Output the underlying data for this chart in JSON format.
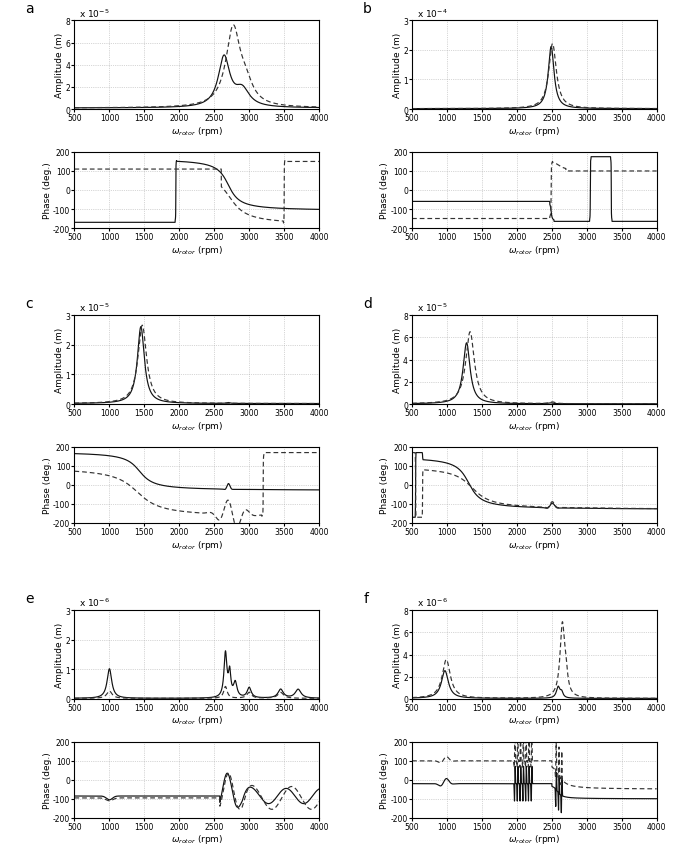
{
  "panels": [
    {
      "label": "a",
      "ylim_amp": [
        0,
        8e-05
      ],
      "exp": -5,
      "yticks_amp": [
        0,
        2e-05,
        4e-05,
        6e-05,
        8e-05
      ]
    },
    {
      "label": "b",
      "ylim_amp": [
        0,
        0.0003
      ],
      "exp": -4,
      "yticks_amp": [
        0,
        0.0001,
        0.0002,
        0.0003
      ]
    },
    {
      "label": "c",
      "ylim_amp": [
        0,
        3e-05
      ],
      "exp": -5,
      "yticks_amp": [
        0,
        1e-05,
        2e-05,
        3e-05
      ]
    },
    {
      "label": "d",
      "ylim_amp": [
        0,
        8e-05
      ],
      "exp": -5,
      "yticks_amp": [
        0,
        2e-05,
        4e-05,
        6e-05,
        8e-05
      ]
    },
    {
      "label": "e",
      "ylim_amp": [
        0,
        3e-06
      ],
      "exp": -6,
      "yticks_amp": [
        0,
        1e-06,
        2e-06,
        3e-06
      ]
    },
    {
      "label": "f",
      "ylim_amp": [
        0,
        8e-06
      ],
      "exp": -6,
      "yticks_amp": [
        0,
        2e-06,
        4e-06,
        6e-06,
        8e-06
      ]
    }
  ]
}
